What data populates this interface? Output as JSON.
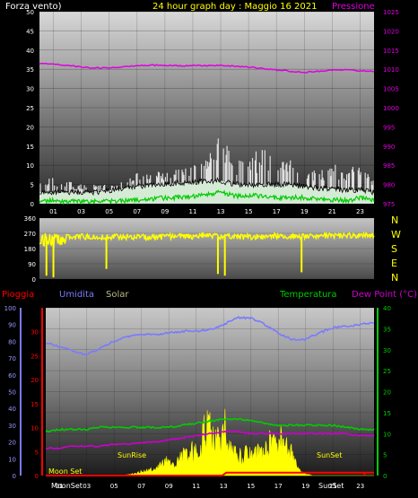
{
  "header": {
    "wind_label": "Forza vento)",
    "title": "24 hour graph day : Maggio 16 2021",
    "pressure_label": "Pressione"
  },
  "direction_labels": [
    "N",
    "W",
    "S",
    "E",
    "N"
  ],
  "bottom_header": {
    "rain": "Pioggia",
    "humidity": "Umidita",
    "solar": "Solar",
    "temperature": "Temperatura",
    "dewpoint": "Dew Point (°C)"
  },
  "astro_labels": {
    "moon_set": "Moon Set",
    "moon_set2": "MoonSet",
    "sun_rise": "SunRise",
    "sun_set": "SunSet",
    "sun_set2": "SunSet"
  },
  "colors": {
    "wind_title": "#ffffff",
    "title": "#ffff00",
    "pressure": "#e000e0",
    "wind_avg": "#ffffff",
    "wind_gust": "#e0e0e0",
    "wind_low": "#00cc00",
    "direction": "#ffff00",
    "rain": "#ff0000",
    "humidity": "#7a7aff",
    "solar": "#ffff00",
    "temperature": "#00cc00",
    "dewpoint": "#cc00cc",
    "solar_label": "#bbbb88"
  },
  "chart_data": [
    {
      "type": "line",
      "title": "24 hour graph day : Maggio 16 2021",
      "x_ticks": [
        "01",
        "03",
        "05",
        "07",
        "09",
        "11",
        "13",
        "15",
        "17",
        "19",
        "21",
        "23"
      ],
      "y_left_ticks": [
        0,
        5,
        10,
        15,
        20,
        25,
        30,
        35,
        40,
        45,
        50
      ],
      "y_left_label": "Forza vento)",
      "ylim_left": [
        0,
        50
      ],
      "y_right_ticks": [
        975,
        980,
        985,
        990,
        995,
        1000,
        1005,
        1010,
        1015,
        1020,
        1025
      ],
      "y_right_label": "Pressione",
      "ylim_right": [
        975,
        1025
      ],
      "series": [
        {
          "name": "Pressione",
          "axis": "right",
          "x": [
            0,
            1,
            2,
            3,
            4,
            5,
            6,
            7,
            8,
            9,
            10,
            11,
            12,
            13,
            14,
            15,
            16,
            17,
            18,
            19,
            20,
            21,
            22,
            23,
            24
          ],
          "values": [
            1011.5,
            1011.3,
            1011,
            1010.6,
            1010.3,
            1010.4,
            1010.6,
            1011,
            1011.1,
            1011,
            1010.9,
            1011,
            1010.9,
            1011,
            1010.8,
            1010.6,
            1010.2,
            1009.8,
            1009.5,
            1009.2,
            1009.5,
            1009.8,
            1009.9,
            1009.6,
            1009.5
          ]
        },
        {
          "name": "Wind average",
          "axis": "left",
          "x": [
            0,
            1,
            2,
            3,
            4,
            5,
            6,
            7,
            8,
            9,
            10,
            11,
            12,
            13,
            14,
            15,
            16,
            17,
            18,
            19,
            20,
            21,
            22,
            23,
            24
          ],
          "values": [
            3,
            3,
            3,
            3,
            3,
            3.5,
            4,
            4.5,
            5,
            5,
            5.5,
            5.5,
            6,
            6,
            5,
            5,
            5,
            5,
            5,
            4.5,
            4,
            4,
            3.5,
            3.5,
            3
          ]
        },
        {
          "name": "Wind gust",
          "axis": "left",
          "x": [
            0,
            1,
            2,
            3,
            4,
            5,
            6,
            7,
            8,
            9,
            10,
            11,
            12,
            13,
            14,
            15,
            16,
            17,
            18,
            19,
            20,
            21,
            22,
            23,
            24
          ],
          "values": [
            6,
            7,
            6,
            5,
            5,
            5,
            7,
            8,
            8,
            9,
            9,
            10,
            13,
            18,
            12,
            11,
            17,
            12,
            13,
            9,
            11,
            10,
            12,
            10,
            6
          ]
        },
        {
          "name": "Wind low",
          "axis": "left",
          "x": [
            0,
            1,
            2,
            3,
            4,
            5,
            6,
            7,
            8,
            9,
            10,
            11,
            12,
            13,
            14,
            15,
            16,
            17,
            18,
            19,
            20,
            21,
            22,
            23,
            24
          ],
          "values": [
            0.5,
            0.8,
            0.6,
            0.5,
            0.5,
            0.6,
            0.7,
            1,
            1.2,
            1.5,
            1.6,
            1.8,
            2.5,
            3,
            2,
            2.2,
            2,
            1.5,
            1.6,
            1.6,
            1.2,
            1,
            0.8,
            1.5,
            1
          ]
        }
      ]
    },
    {
      "type": "line",
      "y_ticks": [
        0,
        90,
        180,
        270,
        360
      ],
      "ylim": [
        0,
        360
      ],
      "x": [
        0,
        1,
        2,
        3,
        4,
        5,
        6,
        7,
        8,
        9,
        10,
        11,
        12,
        13,
        14,
        15,
        16,
        17,
        18,
        19,
        20,
        21,
        22,
        23,
        24
      ],
      "values": [
        240,
        220,
        250,
        250,
        245,
        250,
        250,
        250,
        245,
        250,
        250,
        250,
        260,
        250,
        250,
        250,
        250,
        255,
        250,
        250,
        255,
        260,
        255,
        260,
        255
      ],
      "dips": [
        [
          0.5,
          20
        ],
        [
          1.0,
          10
        ],
        [
          4.8,
          60
        ],
        [
          12.8,
          30
        ],
        [
          13.3,
          20
        ],
        [
          18.8,
          40
        ]
      ]
    },
    {
      "type": "line",
      "x_ticks": [
        "01",
        "03",
        "05",
        "07",
        "09",
        "11",
        "13",
        "15",
        "17",
        "19",
        "21",
        "23"
      ],
      "y_rain_ticks": [
        0,
        5,
        10,
        15,
        20,
        25,
        30
      ],
      "ylim_rain": [
        0,
        35
      ],
      "y_humidity_ticks": [
        0,
        10,
        20,
        30,
        40,
        50,
        60,
        70,
        80,
        90,
        100
      ],
      "ylim_humidity": [
        0,
        100
      ],
      "y_temp_ticks": [
        0,
        5,
        10,
        15,
        20,
        25,
        30,
        35,
        40
      ],
      "ylim_temp": [
        0,
        40
      ],
      "series": [
        {
          "name": "Umidita",
          "axis": "humidity",
          "x": [
            0,
            1,
            2,
            3,
            4,
            5,
            6,
            7,
            8,
            9,
            10,
            11,
            12,
            13,
            14,
            15,
            16,
            17,
            18,
            19,
            20,
            21,
            22,
            23,
            24
          ],
          "values": [
            79,
            77,
            74,
            72,
            76,
            80,
            83,
            84,
            84,
            85,
            86,
            86,
            87,
            90,
            94,
            94,
            90,
            85,
            81,
            81,
            85,
            88,
            89,
            90,
            91
          ]
        },
        {
          "name": "Temperatura",
          "axis": "temp",
          "x": [
            0,
            1,
            2,
            3,
            4,
            5,
            6,
            7,
            8,
            9,
            10,
            11,
            12,
            13,
            14,
            15,
            16,
            17,
            18,
            19,
            20,
            21,
            22,
            23,
            24
          ],
          "values": [
            10.5,
            11,
            11,
            11,
            11.5,
            11.5,
            11.5,
            11.5,
            11.5,
            11.5,
            12,
            12.5,
            13,
            13.5,
            13.5,
            13,
            12.5,
            12,
            12,
            12,
            12,
            12,
            11.5,
            11,
            11
          ]
        },
        {
          "name": "Dew Point",
          "axis": "temp",
          "x": [
            0,
            1,
            2,
            3,
            4,
            5,
            6,
            7,
            8,
            9,
            10,
            11,
            12,
            13,
            14,
            15,
            16,
            17,
            18,
            19,
            20,
            21,
            22,
            23,
            24
          ],
          "values": [
            6.5,
            6.5,
            7,
            7,
            7,
            7.5,
            7.5,
            7.8,
            8,
            8.5,
            9,
            9.5,
            10,
            10.5,
            10.5,
            10,
            10,
            10,
            10,
            10,
            10,
            10,
            10,
            9.5,
            9.5
          ]
        },
        {
          "name": "Solar",
          "axis": "temp",
          "x": [
            0,
            5.5,
            6.5,
            7,
            8,
            9,
            9.5,
            10,
            11,
            11.5,
            12,
            12.5,
            13,
            13.5,
            14,
            15,
            16,
            16.5,
            17,
            18,
            18.5,
            19,
            19.5,
            24
          ],
          "values": [
            0,
            0,
            0.5,
            1,
            2,
            4,
            3,
            5,
            7,
            12,
            16,
            9,
            15,
            7,
            5,
            6,
            6,
            10,
            10,
            6,
            1.5,
            0.5,
            0,
            0
          ]
        },
        {
          "name": "Pioggia",
          "axis": "rain",
          "x": [
            0,
            12.9,
            13.2,
            24
          ],
          "values": [
            0,
            0,
            0.6,
            0.6
          ]
        }
      ]
    }
  ]
}
